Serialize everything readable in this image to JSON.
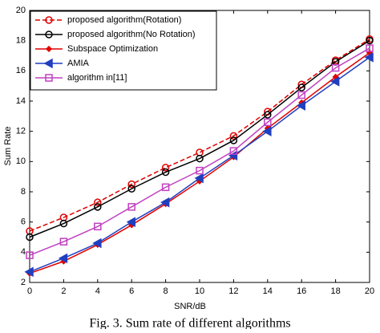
{
  "chart_data": {
    "type": "line",
    "caption": "Fig. 3. Sum rate of different algorithms",
    "xlabel": "SNR/dB",
    "ylabel": "Sum Rate",
    "x": [
      0,
      2,
      4,
      6,
      8,
      10,
      12,
      14,
      16,
      18,
      20
    ],
    "xlim": [
      0,
      20
    ],
    "xticks": [
      0,
      2,
      4,
      6,
      8,
      10,
      12,
      14,
      16,
      18,
      20
    ],
    "ylim": [
      2,
      20
    ],
    "yticks": [
      2,
      4,
      6,
      8,
      10,
      12,
      14,
      16,
      18,
      20
    ],
    "legend": "upper left",
    "series": [
      {
        "name": "proposed algorithm(Rotation)",
        "color": "#e00000",
        "dash": true,
        "marker": "circle",
        "values": [
          5.4,
          6.3,
          7.3,
          8.5,
          9.6,
          10.6,
          11.7,
          13.3,
          15.1,
          16.7,
          18.1
        ]
      },
      {
        "name": "proposed algorithm(No Rotation)",
        "color": "#000000",
        "dash": false,
        "marker": "circle",
        "values": [
          5.0,
          5.9,
          7.0,
          8.2,
          9.3,
          10.2,
          11.4,
          13.1,
          14.9,
          16.6,
          18.0
        ]
      },
      {
        "name": "Subspace Optimization",
        "color": "#e00000",
        "dash": false,
        "marker": "diamond",
        "values": [
          2.6,
          3.4,
          4.5,
          5.8,
          7.2,
          8.7,
          10.3,
          12.2,
          13.9,
          15.6,
          17.2
        ]
      },
      {
        "name": "AMIA",
        "color": "#1f3fbf",
        "dash": false,
        "marker": "triangle",
        "values": [
          2.7,
          3.6,
          4.6,
          6.0,
          7.3,
          8.9,
          10.4,
          12.0,
          13.7,
          15.3,
          16.9
        ]
      },
      {
        "name": "algorithm in[11]",
        "color": "#c040c0",
        "dash": false,
        "marker": "square",
        "values": [
          3.8,
          4.7,
          5.7,
          7.0,
          8.3,
          9.4,
          10.7,
          12.6,
          14.4,
          16.2,
          17.5
        ]
      }
    ]
  }
}
